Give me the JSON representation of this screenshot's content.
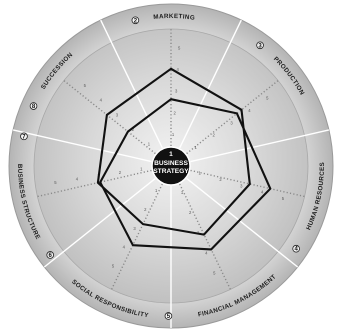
{
  "diagram": {
    "center": {
      "number": "1",
      "line1": "BUSINESS",
      "line2": "STRATEGY"
    },
    "segments": [
      {
        "number": "2",
        "label": "MARKETING"
      },
      {
        "number": "3",
        "label": "PRODUCTION"
      },
      {
        "number": "4",
        "label": "HUMAN RESOURCES"
      },
      {
        "number": "5",
        "label": "FINANCIAL MANAGEMENT"
      },
      {
        "number": "6",
        "label": "SOCIAL RESPONSIBILITY"
      },
      {
        "number": "7",
        "label": "BUSINESS STRUCTURE"
      },
      {
        "number": "8",
        "label": "SUCCESSION"
      }
    ],
    "scale_ticks": [
      "5",
      "4",
      "3",
      "2",
      "1"
    ],
    "profiles": [
      {
        "values": [
          0.66,
          0.6,
          0.52,
          0.48,
          0.38,
          0.47,
          0.53
        ]
      },
      {
        "values": [
          0.4,
          0.55,
          0.7,
          0.62,
          0.58,
          0.45,
          0.3
        ]
      }
    ]
  }
}
